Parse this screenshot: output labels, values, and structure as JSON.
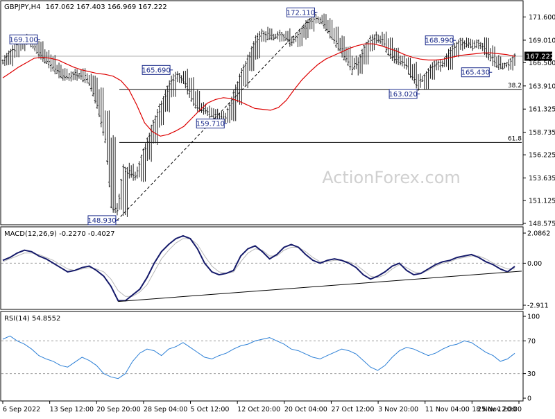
{
  "chart_data": [
    {
      "panel": "price",
      "type": "ohlc",
      "title": "GBPJPY,H4",
      "ohlc_header": "167.062 167.403 166.969 167.222",
      "ylim": [
        148.575,
        172.875
      ],
      "y_ticks": [
        "171.600",
        "169.010",
        "166.500",
        "163.910",
        "161.325",
        "158.735",
        "156.225",
        "153.635",
        "151.125",
        "148.575"
      ],
      "current_price": "167.222",
      "close_series": [
        166.6,
        167.5,
        168.2,
        168.9,
        169.3,
        168.4,
        167.5,
        166.9,
        166.0,
        165.5,
        164.8,
        165.0,
        165.4,
        164.9,
        164.6,
        163.2,
        160.8,
        157.9,
        150.5,
        149.8,
        154.8,
        154.1,
        153.6,
        155.9,
        157.8,
        159.8,
        161.4,
        163.1,
        164.6,
        165.3,
        164.4,
        163.0,
        161.7,
        161.2,
        160.9,
        160.6,
        160.2,
        160.5,
        162.3,
        164.2,
        166.0,
        167.3,
        169.1,
        170.0,
        169.5,
        169.2,
        169.8,
        169.2,
        168.6,
        169.6,
        170.5,
        171.2,
        171.6,
        171.0,
        170.0,
        169.0,
        168.0,
        166.8,
        165.6,
        166.6,
        168.2,
        169.1,
        169.5,
        168.8,
        167.7,
        166.9,
        166.6,
        166.1,
        164.8,
        163.8,
        165.0,
        166.0,
        166.5,
        166.2,
        167.5,
        168.3,
        168.9,
        168.6,
        168.3,
        168.8,
        167.9,
        166.9,
        166.2,
        166.0,
        166.5,
        167.2
      ],
      "ma_series": [
        164.8,
        165.4,
        166.0,
        166.5,
        167.0,
        167.1,
        167.0,
        166.8,
        166.4,
        166.0,
        165.7,
        165.5,
        165.3,
        165.2,
        165.0,
        164.5,
        163.5,
        161.8,
        159.8,
        158.8,
        158.3,
        158.5,
        158.9,
        159.4,
        160.3,
        161.2,
        162.0,
        162.4,
        162.6,
        162.5,
        162.2,
        161.8,
        161.4,
        161.3,
        161.2,
        161.5,
        162.3,
        163.5,
        164.6,
        165.5,
        166.3,
        166.9,
        167.3,
        167.7,
        168.1,
        168.4,
        168.6,
        168.6,
        168.4,
        168.1,
        167.8,
        167.4,
        167.1,
        166.9,
        166.8,
        166.8,
        166.9,
        167.1,
        167.3,
        167.4,
        167.5,
        167.6,
        167.6,
        167.5,
        167.4,
        167.2
      ],
      "level_labels": [
        {
          "text": "169.100",
          "price": 169.1
        },
        {
          "text": "165.690",
          "price": 165.69
        },
        {
          "text": "159.710",
          "price": 159.71
        },
        {
          "text": "148.930",
          "price": 148.93
        },
        {
          "text": "172.110",
          "price": 172.11
        },
        {
          "text": "163.020",
          "price": 163.02
        },
        {
          "text": "168.990",
          "price": 168.99
        },
        {
          "text": "165.430",
          "price": 165.43
        }
      ],
      "fib_levels": [
        {
          "label": "38.2",
          "price": 163.5
        },
        {
          "label": "61.8",
          "price": 157.6
        }
      ],
      "colors": {
        "price": "#1b1b1b",
        "ma": "#dd0000",
        "fib": "#000000",
        "trend": "#000000",
        "label_border": "#1a2a8a",
        "label_text": "#1a2a8a",
        "hline": "#b0b0b0"
      }
    },
    {
      "panel": "macd",
      "type": "line",
      "title": "MACD(12,26,9) -0.2270 -0.4027",
      "ylim": [
        -2.911,
        2.0862
      ],
      "y_ticks": [
        "2.0862",
        "0.00",
        "-2.911"
      ],
      "macd_series": [
        0.2,
        0.4,
        0.7,
        0.9,
        0.8,
        0.5,
        0.3,
        0.0,
        -0.3,
        -0.6,
        -0.5,
        -0.3,
        -0.2,
        -0.5,
        -0.9,
        -1.6,
        -2.6,
        -2.6,
        -2.2,
        -1.8,
        -1.0,
        0.0,
        0.8,
        1.3,
        1.7,
        1.9,
        1.7,
        1.0,
        0.0,
        -0.6,
        -0.8,
        -0.7,
        -0.5,
        0.5,
        1.0,
        1.2,
        0.8,
        0.3,
        0.6,
        1.1,
        1.3,
        1.1,
        0.6,
        0.2,
        0.0,
        0.2,
        0.3,
        0.2,
        0.0,
        -0.3,
        -0.8,
        -1.1,
        -0.9,
        -0.6,
        -0.2,
        0.0,
        -0.5,
        -0.8,
        -0.7,
        -0.4,
        -0.1,
        0.1,
        0.2,
        0.4,
        0.5,
        0.6,
        0.4,
        0.1,
        -0.1,
        -0.4,
        -0.6,
        -0.227
      ],
      "signal_series": [
        0.1,
        0.3,
        0.5,
        0.7,
        0.7,
        0.6,
        0.4,
        0.2,
        -0.1,
        -0.4,
        -0.5,
        -0.4,
        -0.3,
        -0.4,
        -0.6,
        -1.1,
        -1.9,
        -2.3,
        -2.3,
        -2.0,
        -1.5,
        -0.6,
        0.3,
        0.9,
        1.4,
        1.7,
        1.7,
        1.3,
        0.5,
        -0.2,
        -0.6,
        -0.7,
        -0.6,
        0.1,
        0.7,
        1.0,
        0.9,
        0.5,
        0.5,
        0.9,
        1.1,
        1.1,
        0.8,
        0.4,
        0.1,
        0.1,
        0.2,
        0.2,
        0.1,
        -0.1,
        -0.5,
        -0.9,
        -1.0,
        -0.8,
        -0.4,
        -0.1,
        -0.3,
        -0.6,
        -0.7,
        -0.5,
        -0.2,
        0.0,
        0.1,
        0.3,
        0.4,
        0.5,
        0.5,
        0.3,
        0.0,
        -0.2,
        -0.4,
        -0.4027
      ],
      "colors": {
        "macd": "#151a6a",
        "signal": "#b8b8b8",
        "trend": "#000000",
        "zero": "#9a9a9a"
      }
    },
    {
      "panel": "rsi",
      "type": "line",
      "title": "RSI(14) 54.8552",
      "ylim": [
        0,
        100
      ],
      "y_ticks": [
        "100",
        "70",
        "30",
        "0"
      ],
      "rsi_series": [
        72,
        76,
        70,
        66,
        60,
        52,
        48,
        45,
        40,
        38,
        44,
        50,
        46,
        40,
        30,
        26,
        24,
        30,
        45,
        55,
        60,
        58,
        52,
        60,
        63,
        68,
        62,
        56,
        50,
        48,
        52,
        55,
        60,
        64,
        66,
        70,
        72,
        74,
        70,
        66,
        60,
        58,
        54,
        50,
        48,
        52,
        56,
        60,
        58,
        54,
        46,
        38,
        34,
        40,
        50,
        58,
        62,
        60,
        56,
        52,
        55,
        60,
        64,
        66,
        70,
        68,
        62,
        56,
        52,
        45,
        48,
        54.86
      ],
      "colors": {
        "rsi": "#2b7fd6",
        "level": "#9a9a9a"
      }
    }
  ],
  "x_axis": {
    "labels": [
      "6 Sep 2022",
      "13 Sep 12:00",
      "20 Sep 20:00",
      "28 Sep 04:00",
      "5 Oct 12:00",
      "12 Oct 20:00",
      "20 Oct 04:00",
      "27 Oct 12:00",
      "3 Nov 20:00",
      "11 Nov 04:00",
      "18 Nov 12:00",
      "25 Nov 20:00"
    ]
  },
  "watermark": "ActionForex.com",
  "colors": {
    "background": "#ffffff",
    "frame": "#000000",
    "axis_text": "#000000",
    "current_price_bg": "#000000",
    "current_price_text": "#ffffff",
    "watermark": "#d0d0d0"
  }
}
